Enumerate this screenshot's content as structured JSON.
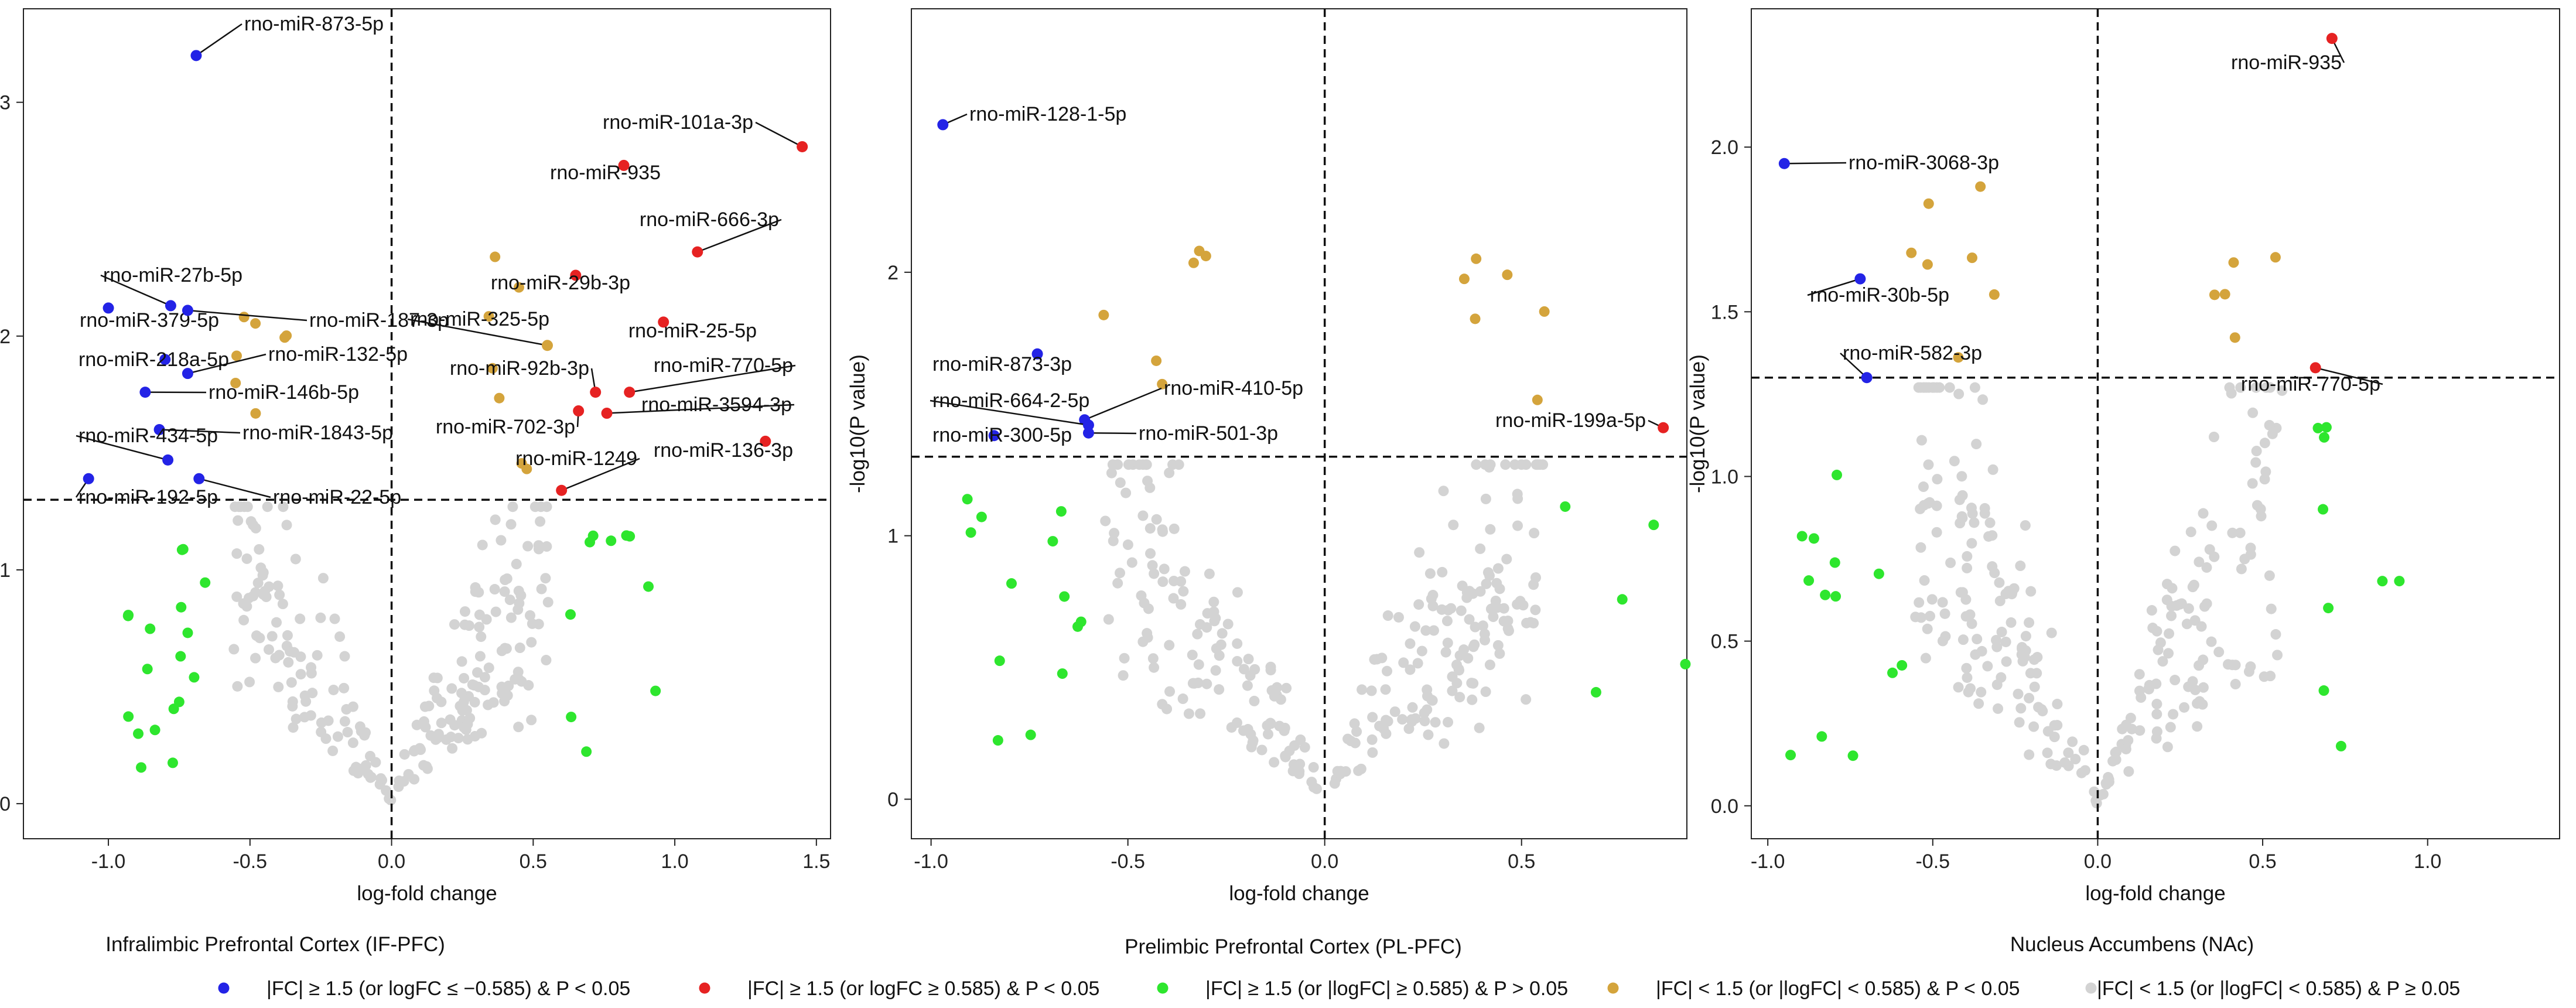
{
  "chart_data": {
    "type": "scatter",
    "subtype": "volcano",
    "legend": [
      {
        "key": "down",
        "label": "|FC| ≥ 1.5 (or logFC ≤ −0.585) & P < 0.05",
        "color": "#2323e6"
      },
      {
        "key": "up",
        "label": "|FC| ≥ 1.5 (or logFC ≥ 0.585) & P < 0.05",
        "color": "#e62222"
      },
      {
        "key": "fc_ns",
        "label": "|FC| ≥ 1.5 (or |logFC| ≥ 0.585) & P > 0.05",
        "color": "#2ee62e"
      },
      {
        "key": "p_only",
        "label": "|FC| < 1.5 (or |logFC| < 0.585) & P < 0.05",
        "color": "#d4a43c"
      },
      {
        "key": "ns",
        "label": "|FC| < 1.5 (or |logFC| < 0.585) & P ≥ 0.05",
        "color": "#d3d3d3"
      }
    ],
    "panels": [
      {
        "title": "Infralimbic Prefrontal Cortex (IF-PFC)",
        "xlabel": "log-fold change",
        "ylabel": "-log10(P value)",
        "xlim": [
          -1.3,
          1.55
        ],
        "ylim": [
          -0.15,
          3.4
        ],
        "xticks": [
          -1.0,
          -0.5,
          0.0,
          0.5,
          1.0,
          1.5
        ],
        "xtick_labels": [
          "-1.0",
          "-0.5",
          "0.0",
          "0.5",
          "1.0",
          "1.5"
        ],
        "yticks": [
          0,
          1,
          2,
          3
        ],
        "ytick_labels": [
          "0",
          "1",
          "2",
          "3"
        ],
        "p_threshold": 1.3,
        "fc_line": 0,
        "labeled_points": [
          {
            "name": "rno-miR-873-5p",
            "x": -0.69,
            "y": 3.2,
            "cat": "down"
          },
          {
            "name": "rno-miR-101a-3p",
            "x": 1.45,
            "y": 2.81,
            "cat": "up"
          },
          {
            "name": "rno-miR-935",
            "x": 0.82,
            "y": 2.73,
            "cat": "up"
          },
          {
            "name": "rno-miR-666-3p",
            "x": 1.08,
            "y": 2.36,
            "cat": "up"
          },
          {
            "name": "rno-miR-29b-3p",
            "x": 0.65,
            "y": 2.26,
            "cat": "up"
          },
          {
            "name": "rno-miR-27b-5p",
            "x": -0.78,
            "y": 2.13,
            "cat": "down"
          },
          {
            "name": "rno-miR-379-5p",
            "x": -1.0,
            "y": 2.12,
            "cat": "down"
          },
          {
            "name": "rno-miR-187-3p",
            "x": -0.72,
            "y": 2.11,
            "cat": "down"
          },
          {
            "name": "rno-miR-325-5p",
            "x": 0.55,
            "y": 1.96,
            "cat": "p_only"
          },
          {
            "name": "rno-miR-25-5p",
            "x": 0.96,
            "y": 2.06,
            "cat": "up"
          },
          {
            "name": "rno-miR-218a-5p",
            "x": -0.8,
            "y": 1.9,
            "cat": "down"
          },
          {
            "name": "rno-miR-132-5p",
            "x": -0.72,
            "y": 1.84,
            "cat": "down"
          },
          {
            "name": "rno-miR-92b-3p",
            "x": 0.72,
            "y": 1.76,
            "cat": "up"
          },
          {
            "name": "rno-miR-770-5p",
            "x": 0.84,
            "y": 1.76,
            "cat": "up"
          },
          {
            "name": "rno-miR-146b-5p",
            "x": -0.87,
            "y": 1.76,
            "cat": "down"
          },
          {
            "name": "rno-miR-3594-3p",
            "x": 0.76,
            "y": 1.67,
            "cat": "up"
          },
          {
            "name": "rno-miR-702-3p",
            "x": 0.66,
            "y": 1.68,
            "cat": "up"
          },
          {
            "name": "rno-miR-1843-5p",
            "x": -0.82,
            "y": 1.6,
            "cat": "down"
          },
          {
            "name": "rno-miR-434-5p",
            "x": -0.79,
            "y": 1.47,
            "cat": "down"
          },
          {
            "name": "rno-miR-1249",
            "x": 0.6,
            "y": 1.34,
            "cat": "up"
          },
          {
            "name": "rno-miR-136-3p",
            "x": 1.32,
            "y": 1.55,
            "cat": "up"
          },
          {
            "name": "rno-miR-192-5p",
            "x": -1.07,
            "y": 1.39,
            "cat": "down"
          },
          {
            "name": "rno-miR-22-5p",
            "x": -0.68,
            "y": 1.39,
            "cat": "down"
          }
        ]
      },
      {
        "title": "Prelimbic Prefrontal Cortex (PL-PFC)",
        "xlabel": "log-fold change",
        "ylabel": "-log10(P value)",
        "xlim": [
          -1.05,
          0.92
        ],
        "ylim": [
          -0.15,
          3.0
        ],
        "xticks": [
          -1.0,
          -0.5,
          0.0,
          0.5
        ],
        "xtick_labels": [
          "-1.0",
          "-0.5",
          "0.0",
          "0.5"
        ],
        "yticks": [
          0,
          1,
          2
        ],
        "ytick_labels": [
          "0",
          "1",
          "2"
        ],
        "p_threshold": 1.3,
        "fc_line": 0,
        "labeled_points": [
          {
            "name": "rno-miR-128-1-5p",
            "x": -0.97,
            "y": 2.56,
            "cat": "down"
          },
          {
            "name": "rno-miR-873-3p",
            "x": -0.73,
            "y": 1.69,
            "cat": "down"
          },
          {
            "name": "rno-miR-410-5p",
            "x": -0.61,
            "y": 1.44,
            "cat": "down"
          },
          {
            "name": "rno-miR-664-2-5p",
            "x": -0.6,
            "y": 1.42,
            "cat": "down"
          },
          {
            "name": "rno-miR-501-3p",
            "x": -0.6,
            "y": 1.39,
            "cat": "down"
          },
          {
            "name": "rno-miR-300-5p",
            "x": -0.84,
            "y": 1.38,
            "cat": "down"
          },
          {
            "name": "rno-miR-199a-5p",
            "x": 0.86,
            "y": 1.41,
            "cat": "up"
          }
        ]
      },
      {
        "title": "Nucleus Accumbens (NAc)",
        "xlabel": "log-fold change",
        "ylabel": "-log10(P value)",
        "xlim": [
          -1.05,
          1.4
        ],
        "ylim": [
          -0.1,
          2.42
        ],
        "xticks": [
          -1.0,
          -0.5,
          0.0,
          0.5,
          1.0
        ],
        "xtick_labels": [
          "-1.0",
          "-0.5",
          "0.0",
          "0.5",
          "1.0"
        ],
        "yticks": [
          0.0,
          0.5,
          1.0,
          1.5,
          2.0
        ],
        "ytick_labels": [
          "0.0",
          "0.5",
          "1.0",
          "1.5",
          "2.0"
        ],
        "p_threshold": 1.3,
        "fc_line": 0,
        "labeled_points": [
          {
            "name": "rno-miR-935",
            "x": 0.71,
            "y": 2.33,
            "cat": "up"
          },
          {
            "name": "rno-miR-3068-3p",
            "x": -0.95,
            "y": 1.95,
            "cat": "down"
          },
          {
            "name": "rno-miR-30b-5p",
            "x": -0.72,
            "y": 1.6,
            "cat": "down"
          },
          {
            "name": "rno-miR-582-3p",
            "x": -0.7,
            "y": 1.3,
            "cat": "down"
          },
          {
            "name": "rno-miR-770-5p",
            "x": 0.66,
            "y": 1.33,
            "cat": "up"
          }
        ]
      }
    ]
  }
}
